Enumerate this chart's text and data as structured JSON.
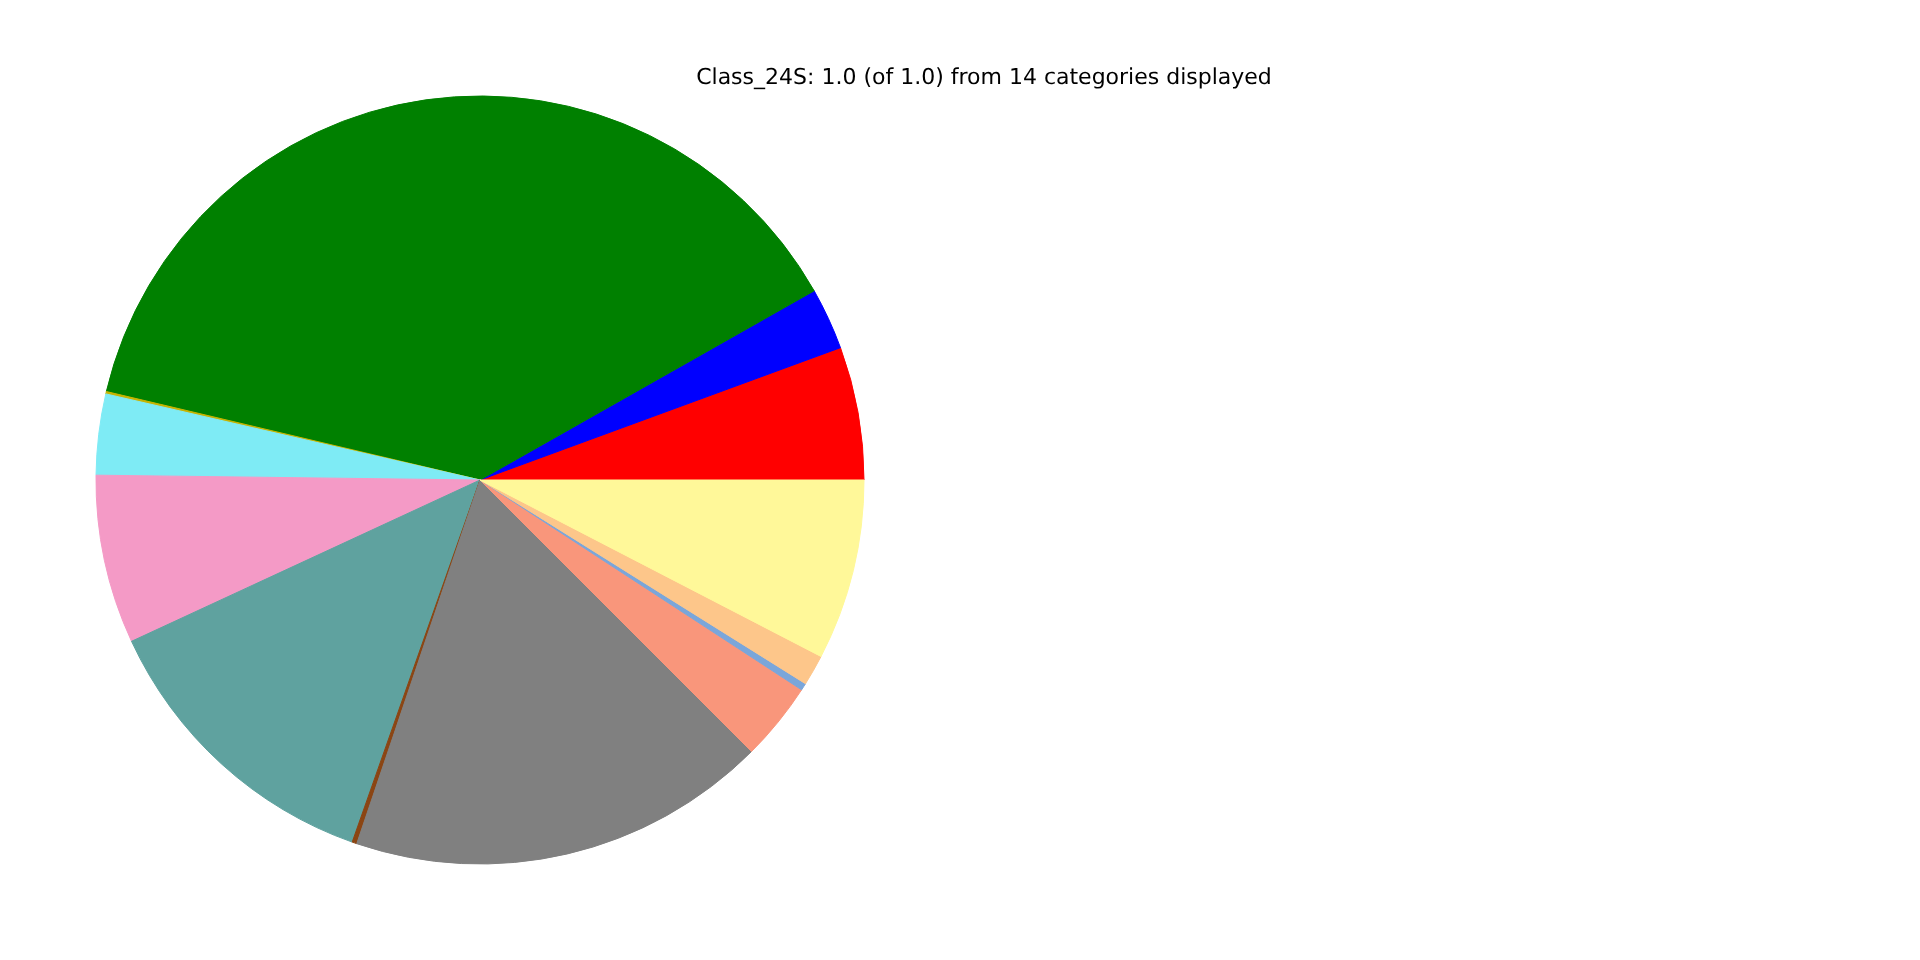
{
  "chart_data": {
    "type": "pie",
    "title": "Class_24S: 1.0 (of 1.0) from 14 categories displayed",
    "categories": [
      null,
      null,
      null,
      null,
      null,
      null,
      null,
      null,
      null,
      null,
      null,
      null,
      null
    ],
    "values": [
      5.6,
      2.6,
      38.1,
      0.1,
      3.4,
      7.1,
      12.7,
      0.2,
      17.7,
      3.3,
      0.3,
      1.3,
      7.6
    ],
    "colors": [
      "#ff0000",
      "#0000ff",
      "#008000",
      "#c8b400",
      "#7eebf5",
      "#f49ac6",
      "#5fa29f",
      "#8b4513",
      "#808080",
      "#f9967b",
      "#7aa6da",
      "#fdc68a",
      "#fff899"
    ],
    "legend": false
  }
}
